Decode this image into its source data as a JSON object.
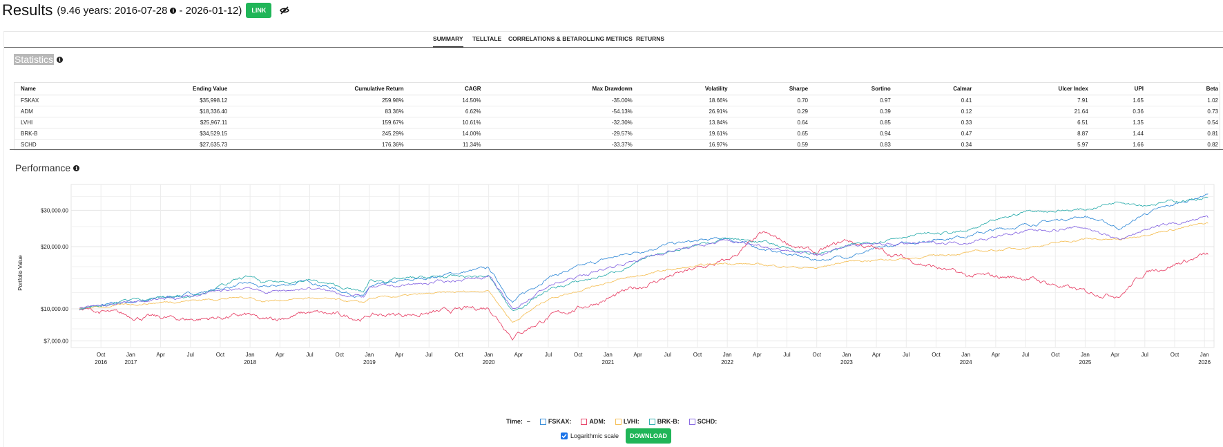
{
  "header": {
    "title": "Results",
    "range_prefix": "(9.46 years: 2016-07-28",
    "range_suffix": "- 2026-01-12)",
    "link_label": "LINK"
  },
  "tabs": [
    {
      "label": "SUMMARY"
    },
    {
      "label": "TELLTALE"
    },
    {
      "label": "CORRELATIONS & BETA"
    },
    {
      "label": "ROLLING METRICS"
    },
    {
      "label": "RETURNS"
    }
  ],
  "statistics": {
    "title": "Statistics",
    "columns": [
      "Name",
      "Ending Value",
      "Cumulative Return",
      "CAGR",
      "Max Drawdown",
      "Volatility",
      "Sharpe",
      "Sortino",
      "Calmar",
      "Ulcer Index",
      "UPI",
      "Beta"
    ],
    "rows": [
      [
        "FSKAX",
        "$35,998.12",
        "259.98%",
        "14.50%",
        "-35.00%",
        "18.66%",
        "0.70",
        "0.97",
        "0.41",
        "7.91",
        "1.65",
        "1.02"
      ],
      [
        "ADM",
        "$18,336.40",
        "83.36%",
        "6.62%",
        "-54.13%",
        "26.91%",
        "0.29",
        "0.39",
        "0.12",
        "21.64",
        "0.36",
        "0.73"
      ],
      [
        "LVHI",
        "$25,967.11",
        "159.67%",
        "10.61%",
        "-32.30%",
        "13.84%",
        "0.64",
        "0.85",
        "0.33",
        "6.51",
        "1.35",
        "0.54"
      ],
      [
        "BRK-B",
        "$34,529.15",
        "245.29%",
        "14.00%",
        "-29.57%",
        "19.61%",
        "0.65",
        "0.94",
        "0.47",
        "8.87",
        "1.44",
        "0.81"
      ],
      [
        "SCHD",
        "$27,635.73",
        "176.36%",
        "11.34%",
        "-33.37%",
        "16.97%",
        "0.59",
        "0.83",
        "0.34",
        "5.97",
        "1.66",
        "0.82"
      ]
    ]
  },
  "performance": {
    "title": "Performance",
    "ylabel": "Portfolio Value",
    "y_ticks": [
      "$30,000.00",
      "$20,000.00",
      "$10,000.00",
      "$7,000.00"
    ],
    "x_ticks": [
      {
        "m": "Oct",
        "y": "2016"
      },
      {
        "m": "Jan",
        "y": "2017"
      },
      {
        "m": "Apr",
        "y": ""
      },
      {
        "m": "Jul",
        "y": ""
      },
      {
        "m": "Oct",
        "y": ""
      },
      {
        "m": "Jan",
        "y": "2018"
      },
      {
        "m": "Apr",
        "y": ""
      },
      {
        "m": "Jul",
        "y": ""
      },
      {
        "m": "Oct",
        "y": ""
      },
      {
        "m": "Jan",
        "y": "2019"
      },
      {
        "m": "Apr",
        "y": ""
      },
      {
        "m": "Jul",
        "y": ""
      },
      {
        "m": "Oct",
        "y": ""
      },
      {
        "m": "Jan",
        "y": "2020"
      },
      {
        "m": "Apr",
        "y": ""
      },
      {
        "m": "Jul",
        "y": ""
      },
      {
        "m": "Oct",
        "y": ""
      },
      {
        "m": "Jan",
        "y": "2021"
      },
      {
        "m": "Apr",
        "y": ""
      },
      {
        "m": "Jul",
        "y": ""
      },
      {
        "m": "Oct",
        "y": ""
      },
      {
        "m": "Jan",
        "y": "2022"
      },
      {
        "m": "Apr",
        "y": ""
      },
      {
        "m": "Jul",
        "y": ""
      },
      {
        "m": "Oct",
        "y": ""
      },
      {
        "m": "Jan",
        "y": "2023"
      },
      {
        "m": "Apr",
        "y": ""
      },
      {
        "m": "Jul",
        "y": ""
      },
      {
        "m": "Oct",
        "y": ""
      },
      {
        "m": "Jan",
        "y": "2024"
      },
      {
        "m": "Apr",
        "y": ""
      },
      {
        "m": "Jul",
        "y": ""
      },
      {
        "m": "Oct",
        "y": ""
      },
      {
        "m": "Jan",
        "y": "2025"
      },
      {
        "m": "Apr",
        "y": ""
      },
      {
        "m": "Jul",
        "y": ""
      },
      {
        "m": "Oct",
        "y": ""
      },
      {
        "m": "Jan",
        "y": "2026"
      }
    ],
    "legend_time_label": "Time:",
    "legend_time_value": "–",
    "legend": [
      {
        "name": "FSKAX:",
        "color": "#3b8fd9"
      },
      {
        "name": "ADM:",
        "color": "#e8476b"
      },
      {
        "name": "LVHI:",
        "color": "#f5c15c"
      },
      {
        "name": "BRK-B:",
        "color": "#35b0b0"
      },
      {
        "name": "SCHD:",
        "color": "#8a6be3"
      }
    ],
    "log_scale_label": "Logarithmic scale",
    "download_label": "DOWNLOAD"
  },
  "chart_data": {
    "type": "line",
    "title": "Performance",
    "xlabel": "",
    "ylabel": "Portfolio Value",
    "yscale": "log",
    "ylim": [
      6500,
      40000
    ],
    "x": [
      2016.57,
      2017.0,
      2017.5,
      2018.0,
      2018.1,
      2018.5,
      2018.95,
      2019.0,
      2019.5,
      2020.0,
      2020.2,
      2020.5,
      2021.0,
      2021.5,
      2022.0,
      2022.3,
      2022.75,
      2023.0,
      2023.5,
      2024.0,
      2024.5,
      2025.0,
      2025.3,
      2025.5,
      2026.03
    ],
    "series": [
      {
        "name": "FSKAX",
        "color": "#3b8fd9",
        "values": [
          10000,
          10800,
          11800,
          13300,
          12600,
          13600,
          11400,
          12700,
          14200,
          15700,
          10800,
          14300,
          17500,
          20500,
          22000,
          19500,
          17200,
          18000,
          20800,
          22700,
          25500,
          28200,
          24500,
          28800,
          35998
        ]
      },
      {
        "name": "ADM",
        "color": "#e8476b",
        "values": [
          10000,
          9200,
          8900,
          9300,
          8700,
          9600,
          9000,
          9300,
          9500,
          10200,
          7400,
          9100,
          11200,
          14300,
          17000,
          23000,
          18500,
          21500,
          17500,
          14400,
          14200,
          12000,
          11800,
          15000,
          18336
        ]
      },
      {
        "name": "LVHI",
        "color": "#f5c15c",
        "values": [
          10000,
          10500,
          11000,
          11400,
          10900,
          11300,
          10700,
          11200,
          11800,
          12300,
          8600,
          11200,
          13500,
          15400,
          16700,
          16300,
          15700,
          17000,
          17500,
          18700,
          19800,
          21800,
          21600,
          23000,
          25967
        ]
      },
      {
        "name": "BRK-B",
        "color": "#35b0b0",
        "values": [
          10000,
          11100,
          11600,
          14400,
          13300,
          13800,
          12000,
          13600,
          14200,
          14400,
          9700,
          12400,
          14700,
          19000,
          22000,
          21000,
          18300,
          20000,
          22700,
          23600,
          29700,
          30200,
          33500,
          32000,
          34529
        ]
      },
      {
        "name": "SCHD",
        "color": "#8a6be3",
        "values": [
          10000,
          10700,
          11500,
          12800,
          12000,
          12600,
          11400,
          12600,
          13300,
          14400,
          9900,
          12900,
          15800,
          19000,
          21300,
          20200,
          18300,
          20300,
          20600,
          21100,
          23700,
          24800,
          21600,
          24300,
          27636
        ]
      }
    ]
  }
}
